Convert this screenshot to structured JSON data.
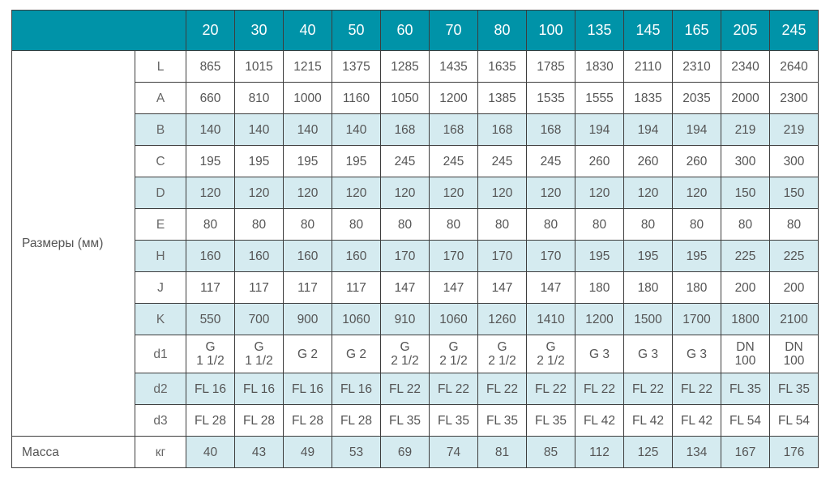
{
  "header": {
    "sizes": [
      "20",
      "30",
      "40",
      "50",
      "60",
      "70",
      "80",
      "100",
      "135",
      "145",
      "165",
      "205",
      "245"
    ]
  },
  "colors": {
    "header": "#0093a8",
    "shade": "#d5ebf0"
  },
  "group_label": "Размеры (мм)",
  "rows": [
    {
      "key": "L",
      "shade": false,
      "values": [
        "865",
        "1015",
        "1215",
        "1375",
        "1285",
        "1435",
        "1635",
        "1785",
        "1830",
        "2110",
        "2310",
        "2340",
        "2640"
      ]
    },
    {
      "key": "A",
      "shade": false,
      "values": [
        "660",
        "810",
        "1000",
        "1160",
        "1050",
        "1200",
        "1385",
        "1535",
        "1555",
        "1835",
        "2035",
        "2000",
        "2300"
      ]
    },
    {
      "key": "B",
      "shade": true,
      "values": [
        "140",
        "140",
        "140",
        "140",
        "168",
        "168",
        "168",
        "168",
        "194",
        "194",
        "194",
        "219",
        "219"
      ]
    },
    {
      "key": "C",
      "shade": false,
      "values": [
        "195",
        "195",
        "195",
        "195",
        "245",
        "245",
        "245",
        "245",
        "260",
        "260",
        "260",
        "300",
        "300"
      ]
    },
    {
      "key": "D",
      "shade": true,
      "values": [
        "120",
        "120",
        "120",
        "120",
        "120",
        "120",
        "120",
        "120",
        "120",
        "120",
        "120",
        "150",
        "150"
      ]
    },
    {
      "key": "E",
      "shade": false,
      "values": [
        "80",
        "80",
        "80",
        "80",
        "80",
        "80",
        "80",
        "80",
        "80",
        "80",
        "80",
        "80",
        "80"
      ]
    },
    {
      "key": "H",
      "shade": true,
      "values": [
        "160",
        "160",
        "160",
        "160",
        "170",
        "170",
        "170",
        "170",
        "195",
        "195",
        "195",
        "225",
        "225"
      ]
    },
    {
      "key": "J",
      "shade": false,
      "values": [
        "117",
        "117",
        "117",
        "117",
        "147",
        "147",
        "147",
        "147",
        "180",
        "180",
        "180",
        "200",
        "200"
      ]
    },
    {
      "key": "K",
      "shade": true,
      "values": [
        "550",
        "700",
        "900",
        "1060",
        "910",
        "1060",
        "1260",
        "1410",
        "1200",
        "1500",
        "1700",
        "1800",
        "2100"
      ]
    },
    {
      "key": "d1",
      "shade": false,
      "values": [
        "G\n1 1/2",
        "G\n1 1/2",
        "G 2",
        "G 2",
        "G\n2 1/2",
        "G\n2 1/2",
        "G\n2 1/2",
        "G\n2 1/2",
        "G 3",
        "G 3",
        "G 3",
        "DN\n100",
        "DN\n100"
      ]
    },
    {
      "key": "d2",
      "shade": true,
      "values": [
        "FL 16",
        "FL 16",
        "FL 16",
        "FL 16",
        "FL 22",
        "FL 22",
        "FL 22",
        "FL 22",
        "FL 22",
        "FL 22",
        "FL 22",
        "FL 35",
        "FL 35"
      ]
    },
    {
      "key": "d3",
      "shade": false,
      "values": [
        "FL 28",
        "FL 28",
        "FL 28",
        "FL 28",
        "FL 35",
        "FL 35",
        "FL 35",
        "FL 35",
        "FL 42",
        "FL 42",
        "FL 42",
        "FL 54",
        "FL 54"
      ]
    }
  ],
  "mass": {
    "label": "Масса",
    "unit": "кг",
    "values": [
      "40",
      "43",
      "49",
      "53",
      "69",
      "74",
      "81",
      "85",
      "112",
      "125",
      "134",
      "167",
      "176"
    ]
  }
}
